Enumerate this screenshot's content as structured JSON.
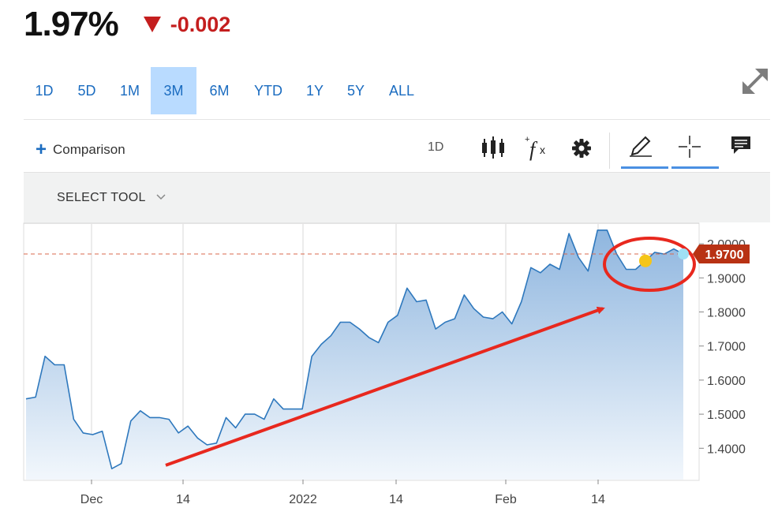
{
  "quote": {
    "value": "1.97%",
    "change": "-0.002",
    "direction": "down",
    "down_color": "#c41e1e"
  },
  "ranges": {
    "tabs": [
      "1D",
      "5D",
      "1M",
      "3M",
      "6M",
      "YTD",
      "1Y",
      "5Y",
      "ALL"
    ],
    "active": "3M"
  },
  "toolbar": {
    "comparison_label": "Comparison",
    "interval_label": "1D",
    "icons": [
      "candlestick-icon",
      "fx-icon",
      "gear-icon",
      "pencil-icon",
      "crosshair-icon",
      "comment-icon",
      "expand-icon"
    ]
  },
  "select_tool": {
    "label": "SELECT TOOL"
  },
  "chart_data": {
    "type": "area",
    "x_tick_labels": [
      "Dec",
      "14",
      "2022",
      "14",
      "Feb",
      "14"
    ],
    "y_tick_labels": [
      "1.4000",
      "1.5000",
      "1.6000",
      "1.7000",
      "1.8000",
      "1.9000",
      "2.0000"
    ],
    "ylim": [
      1.32,
      2.06
    ],
    "grid": "vertical",
    "line_color": "#2e78bd",
    "reference_line": {
      "value": 1.97,
      "style": "dashed",
      "color": "#d9684c"
    },
    "last_value_label": "1.9700",
    "last_value_label_color": "#b83214",
    "annotations": {
      "arrow": {
        "color": "#e8281e",
        "from_value": 1.35,
        "to_value": 1.81
      },
      "circle": {
        "color": "#e8281e"
      },
      "dots": [
        {
          "color": "#f5c518",
          "value": 1.95
        },
        {
          "color": "#9fe0f5",
          "value": 1.97
        }
      ]
    },
    "values": [
      1.545,
      1.55,
      1.67,
      1.645,
      1.645,
      1.485,
      1.445,
      1.44,
      1.45,
      1.34,
      1.355,
      1.48,
      1.51,
      1.49,
      1.49,
      1.485,
      1.445,
      1.465,
      1.43,
      1.41,
      1.415,
      1.49,
      1.46,
      1.5,
      1.5,
      1.485,
      1.545,
      1.515,
      1.515,
      1.515,
      1.67,
      1.705,
      1.73,
      1.77,
      1.77,
      1.75,
      1.725,
      1.71,
      1.77,
      1.79,
      1.87,
      1.83,
      1.835,
      1.75,
      1.77,
      1.78,
      1.85,
      1.81,
      1.785,
      1.78,
      1.8,
      1.765,
      1.83,
      1.93,
      1.915,
      1.94,
      1.925,
      2.03,
      1.96,
      1.92,
      2.04,
      2.04,
      1.97,
      1.925,
      1.925,
      1.95,
      1.975,
      1.97,
      1.985,
      1.97
    ]
  }
}
